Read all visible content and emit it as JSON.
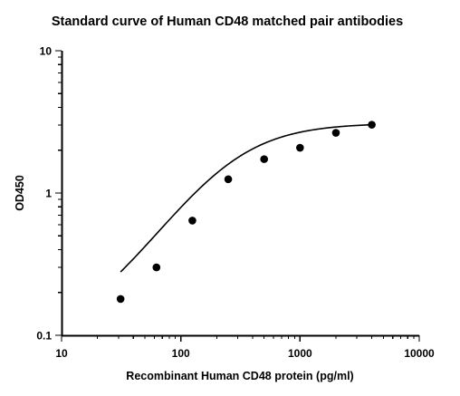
{
  "chart_data": {
    "type": "scatter",
    "title": "Standard curve of Human CD48 matched pair antibodies",
    "xlabel": "Recombinant Human CD48 protein (pg/ml)",
    "ylabel": "OD450",
    "x_scale": "log",
    "y_scale": "log",
    "xlim": [
      10,
      10000
    ],
    "ylim": [
      0.1,
      10
    ],
    "x_ticks": [
      10,
      100,
      1000,
      10000
    ],
    "x_tick_labels": [
      "10",
      "100",
      "1000",
      "10000"
    ],
    "y_ticks": [
      0.1,
      1,
      10
    ],
    "y_tick_labels": [
      "0.1",
      "1",
      "10"
    ],
    "grid": false,
    "legend": false,
    "series": [
      {
        "x": [
          31.25,
          62.5,
          125,
          250,
          500,
          1000,
          2000,
          4000
        ],
        "y": [
          0.18,
          0.3,
          0.64,
          1.25,
          1.73,
          2.08,
          2.65,
          3.02
        ],
        "marker": "circle",
        "color": "#000000"
      }
    ],
    "fit": {
      "type": "4PL",
      "bottom": 0.09,
      "top": 3.1,
      "ec50": 250,
      "hill": 1.3,
      "x_range": [
        31.25,
        4000
      ],
      "color": "#000000"
    }
  }
}
